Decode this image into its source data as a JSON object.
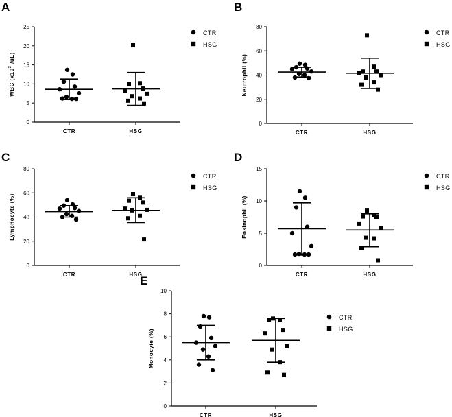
{
  "figure": {
    "legend_labels": [
      "CTR",
      "HSG"
    ]
  },
  "chart_data": [
    {
      "panel": "A",
      "type": "scatter",
      "ylabel": "WBC (x10³ /uL)",
      "ylim": [
        0,
        25
      ],
      "yticks": [
        0,
        5,
        10,
        15,
        20,
        25
      ],
      "categories": [
        "CTR",
        "HSG"
      ],
      "series": [
        {
          "name": "CTR",
          "marker": "circle",
          "values": [
            13.7,
            12.5,
            10.6,
            9.3,
            8.6,
            7.6,
            6.6,
            6.1,
            6.2,
            6.1
          ],
          "mean": 8.6,
          "sd_low": 5.9,
          "sd_high": 11.3
        },
        {
          "name": "HSG",
          "marker": "square",
          "values": [
            20.2,
            10.2,
            9.9,
            8.8,
            8.1,
            7.4,
            6.8,
            6.2,
            5.6,
            4.9
          ],
          "mean": 8.7,
          "sd_low": 4.4,
          "sd_high": 13.0
        }
      ],
      "legend_position": "top-right"
    },
    {
      "panel": "B",
      "type": "scatter",
      "ylabel": "Neutrophil (%)",
      "ylim": [
        0,
        80
      ],
      "yticks": [
        0,
        20,
        40,
        60,
        80
      ],
      "categories": [
        "CTR",
        "HSG"
      ],
      "series": [
        {
          "name": "CTR",
          "marker": "circle",
          "values": [
            49.5,
            48.5,
            46.5,
            45.5,
            45.0,
            43.0,
            41.0,
            40.0,
            38.0,
            37.5
          ],
          "mean": 42.5,
          "sd_low": 38.5,
          "sd_high": 46.5
        },
        {
          "name": "HSG",
          "marker": "square",
          "values": [
            73.0,
            47.0,
            43.0,
            43.0,
            42.0,
            40.0,
            38.0,
            34.0,
            32.0,
            28.0
          ],
          "mean": 41.5,
          "sd_low": 29.0,
          "sd_high": 54.0
        }
      ],
      "legend_position": "top-right"
    },
    {
      "panel": "C",
      "type": "scatter",
      "ylabel": "Lymphocyte (%)",
      "ylim": [
        0,
        80
      ],
      "yticks": [
        0,
        20,
        40,
        60,
        80
      ],
      "categories": [
        "CTR",
        "HSG"
      ],
      "series": [
        {
          "name": "CTR",
          "marker": "circle",
          "values": [
            54.0,
            50.5,
            49.5,
            47.5,
            47.0,
            45.0,
            42.5,
            41.0,
            40.0,
            38.0
          ],
          "mean": 44.5,
          "sd_low": 40.0,
          "sd_high": 49.5
        },
        {
          "name": "HSG",
          "marker": "square",
          "values": [
            59.0,
            56.0,
            53.5,
            52.0,
            47.0,
            46.0,
            45.5,
            41.0,
            39.0,
            21.5
          ],
          "mean": 45.5,
          "sd_low": 35.5,
          "sd_high": 56.0
        }
      ],
      "legend_position": "top-right"
    },
    {
      "panel": "D",
      "type": "scatter",
      "ylabel": "Eosinophil (%)",
      "ylim": [
        0,
        15
      ],
      "yticks": [
        0,
        5,
        10,
        15
      ],
      "categories": [
        "CTR",
        "HSG"
      ],
      "series": [
        {
          "name": "CTR",
          "marker": "circle",
          "values": [
            11.5,
            10.5,
            9.0,
            6.0,
            5.0,
            3.0,
            1.8,
            1.7,
            1.7,
            1.7
          ],
          "mean": 5.7,
          "sd_low": 1.6,
          "sd_high": 9.7
        },
        {
          "name": "HSG",
          "marker": "square",
          "values": [
            8.5,
            7.8,
            7.6,
            7.5,
            6.5,
            5.8,
            4.3,
            4.2,
            2.7,
            0.8
          ],
          "mean": 5.5,
          "sd_low": 2.9,
          "sd_high": 8.0
        }
      ],
      "legend_position": "top-right"
    },
    {
      "panel": "E",
      "type": "scatter",
      "ylabel": "Monocyte (%)",
      "ylim": [
        0,
        10
      ],
      "yticks": [
        0,
        2,
        4,
        6,
        8,
        10
      ],
      "categories": [
        "CTR",
        "HSG"
      ],
      "series": [
        {
          "name": "CTR",
          "marker": "circle",
          "values": [
            7.8,
            7.7,
            6.9,
            5.9,
            5.5,
            5.2,
            4.9,
            4.3,
            3.6,
            3.1
          ],
          "mean": 5.5,
          "sd_low": 4.0,
          "sd_high": 7.0
        },
        {
          "name": "HSG",
          "marker": "square",
          "values": [
            7.6,
            7.5,
            7.5,
            6.6,
            6.3,
            5.2,
            4.9,
            3.8,
            2.9,
            2.7
          ],
          "mean": 5.7,
          "sd_low": 3.8,
          "sd_high": 7.6
        }
      ],
      "legend_position": "top-right"
    }
  ]
}
